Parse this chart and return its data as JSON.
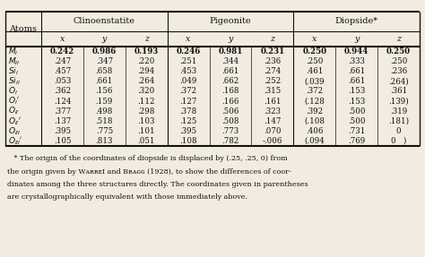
{
  "clinoenstatite": [
    [
      "0.242",
      "0.986",
      "0.193"
    ],
    [
      ".247",
      ".347",
      ".220"
    ],
    [
      ".457",
      ".658",
      ".294"
    ],
    [
      ".053",
      ".661",
      ".264"
    ],
    [
      ".362",
      ".156",
      ".320"
    ],
    [
      ".124",
      ".159",
      ".112"
    ],
    [
      ".377",
      ".498",
      ".298"
    ],
    [
      ".137",
      ".518",
      ".103"
    ],
    [
      ".395",
      ".775",
      ".101"
    ],
    [
      ".105",
      ".813",
      ".051"
    ]
  ],
  "pigeonite": [
    [
      "0.246",
      "0.981",
      "0.231"
    ],
    [
      ".251",
      ".344",
      ".236"
    ],
    [
      ".453",
      ".661",
      ".274"
    ],
    [
      ".049",
      ".662",
      ".252"
    ],
    [
      ".372",
      ".168",
      ".315"
    ],
    [
      ".127",
      ".166",
      ".161"
    ],
    [
      ".378",
      ".506",
      ".323"
    ],
    [
      ".125",
      ".508",
      ".147"
    ],
    [
      ".395",
      ".773",
      ".070"
    ],
    [
      ".108",
      ".782",
      "-.006"
    ]
  ],
  "diopside": [
    [
      "0.250",
      "0.944",
      "0.250"
    ],
    [
      ".250",
      ".333",
      ".250"
    ],
    [
      ".461",
      ".661",
      ".236"
    ],
    [
      "(.039",
      ".661",
      ".264)"
    ],
    [
      ".372",
      ".153",
      ".361"
    ],
    [
      "(.128",
      ".153",
      ".139)"
    ],
    [
      ".392",
      ".500",
      ".319"
    ],
    [
      "(.108",
      ".500",
      ".181)"
    ],
    [
      ".406",
      ".731",
      "0"
    ],
    [
      "(.094",
      ".769",
      "0   )"
    ]
  ],
  "atom_labels": [
    "M_I",
    "M_II",
    "Si_I",
    "Si_II",
    "O_I",
    "O_I'",
    "O_II",
    "O_II'",
    "O_III",
    "O_III'"
  ],
  "footnote_lines": [
    "* The origin of the coordinates of diopside is displaced by (.25, .25, 0) from",
    "the origin given by WᴀʀʀᴇӀ and Bʀᴀɢɢ (1928), to show the differences of coor-",
    "dinates among the three structures directly. The coordinates given in parentheses",
    "are crystallographically equivalent with those immediately above."
  ],
  "footnote_raw": "* The origin of the coordinates of diopside is displaced by (.25, .25, 0) from the origin given by WARREN and BRAGG (1928), to show the differences of coordinates among the three structures directly. The coordinates given in parentheses are crystallographically equivalent with those immediately above.",
  "bg_color": "#f2ece0",
  "text_color": "#111111",
  "line_color": "#111111"
}
